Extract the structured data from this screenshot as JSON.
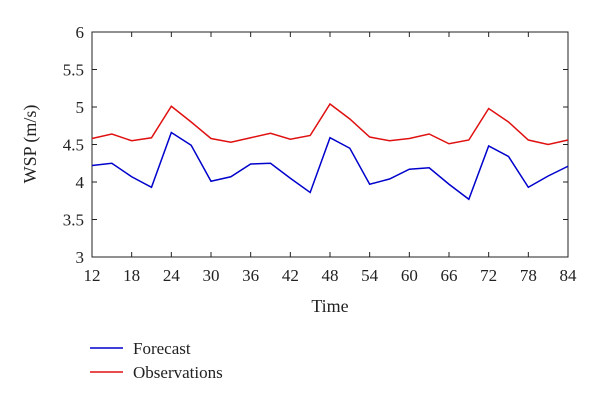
{
  "chart_data": {
    "type": "line",
    "xlabel": "Time",
    "ylabel": "WSP (m/s)",
    "xlim": [
      12,
      84
    ],
    "ylim": [
      3,
      6
    ],
    "x_ticks": [
      12,
      18,
      24,
      30,
      36,
      42,
      48,
      54,
      60,
      66,
      72,
      78,
      84
    ],
    "y_ticks": [
      "3",
      "3.5",
      "4",
      "4.5",
      "5",
      "5.5",
      "6"
    ],
    "x": [
      12,
      15,
      18,
      21,
      24,
      27,
      30,
      33,
      36,
      39,
      42,
      45,
      48,
      51,
      54,
      57,
      60,
      63,
      66,
      69,
      72,
      75,
      78,
      81,
      84
    ],
    "series": [
      {
        "name": "Forecast",
        "color": "#0000cc",
        "values": [
          4.22,
          4.25,
          4.07,
          3.93,
          4.66,
          4.49,
          4.01,
          4.07,
          4.24,
          4.25,
          4.05,
          3.86,
          4.59,
          4.45,
          3.97,
          4.04,
          4.17,
          4.19,
          3.97,
          3.77,
          4.48,
          4.34,
          3.93,
          4.08,
          4.21
        ]
      },
      {
        "name": "Observations",
        "color": "#e01010",
        "values": [
          4.58,
          4.64,
          4.55,
          4.59,
          5.01,
          4.8,
          4.58,
          4.53,
          4.59,
          4.65,
          4.57,
          4.62,
          5.04,
          4.84,
          4.6,
          4.55,
          4.58,
          4.64,
          4.51,
          4.56,
          4.98,
          4.8,
          4.56,
          4.5,
          4.56
        ]
      }
    ],
    "legend": {
      "placement": "bottom-left",
      "entries": [
        "Forecast",
        "Observations"
      ]
    },
    "grid": false
  }
}
